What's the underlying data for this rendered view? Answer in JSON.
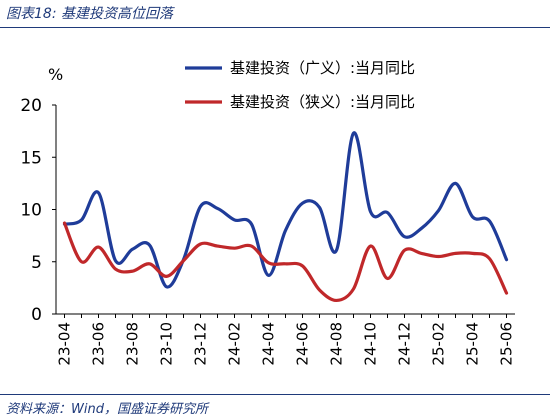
{
  "figure_title": "图表18:  基建投资高位回落",
  "source_text": "资料来源：Wind，国盛证券研究所",
  "chart_data": {
    "type": "line",
    "title": "",
    "ylabel": "%",
    "xlabel": "",
    "ylim": [
      0,
      20
    ],
    "yticks": [
      0,
      5,
      10,
      15,
      20
    ],
    "x_tick_labels": [
      "23-04",
      "23-06",
      "23-08",
      "23-10",
      "23-12",
      "24-02",
      "24-04",
      "24-06",
      "24-08",
      "24-10",
      "24-12",
      "25-02",
      "25-04",
      "25-06"
    ],
    "x": [
      "23-04",
      "23-05",
      "23-06",
      "23-07",
      "23-08",
      "23-09",
      "23-10",
      "23-11",
      "23-12",
      "24-01",
      "24-02",
      "24-03",
      "24-04",
      "24-05",
      "24-06",
      "24-07",
      "24-08",
      "24-09",
      "24-10",
      "24-11",
      "24-12",
      "25-01",
      "25-02",
      "25-03",
      "25-04",
      "25-05",
      "25-06"
    ],
    "grid": false,
    "legend_position": "top-right",
    "series": [
      {
        "name": "基建投资（广义）:当月同比",
        "color": "#1f3c99",
        "values": [
          8.6,
          9.0,
          11.6,
          5.1,
          6.2,
          6.6,
          2.6,
          5.2,
          10.3,
          10.1,
          9.0,
          8.6,
          3.7,
          8.0,
          10.6,
          10.2,
          6.1,
          17.3,
          9.8,
          9.7,
          7.4,
          8.2,
          9.9,
          12.5,
          9.3,
          8.9,
          5.2
        ]
      },
      {
        "name": "基建投资（狭义）:当月同比",
        "color": "#c0282a",
        "values": [
          8.7,
          5.0,
          6.4,
          4.3,
          4.1,
          4.8,
          3.6,
          5.1,
          6.7,
          6.5,
          6.3,
          6.5,
          4.9,
          4.8,
          4.6,
          2.3,
          1.3,
          2.4,
          6.5,
          3.4,
          6.1,
          5.8,
          5.5,
          5.8,
          5.8,
          5.3,
          2.0
        ]
      }
    ]
  }
}
